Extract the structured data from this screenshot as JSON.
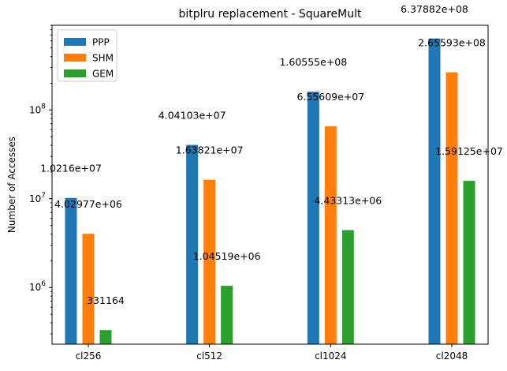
{
  "chart_data": {
    "type": "bar",
    "title": "bitplru replacement - SquareMult",
    "xlabel": "",
    "ylabel": "Number of Accesses",
    "yscale": "log",
    "ylim": [
      230000,
      900000000
    ],
    "yticks": [
      {
        "value": 1000000,
        "base": "10",
        "exp": "6"
      },
      {
        "value": 10000000,
        "base": "10",
        "exp": "7"
      },
      {
        "value": 100000000,
        "base": "10",
        "exp": "8"
      }
    ],
    "categories": [
      "cl256",
      "cl512",
      "cl1024",
      "cl2048"
    ],
    "series": [
      {
        "name": "PPP",
        "color": "#1f77b4",
        "values": [
          10216000,
          40410300,
          160555000,
          637882000
        ],
        "labels": [
          "1.0216e+07",
          "4.04103e+07",
          "1.60555e+08",
          "6.37882e+08"
        ]
      },
      {
        "name": "SHM",
        "color": "#ff7f0e",
        "values": [
          4029770,
          16382100,
          65560900,
          265593000
        ],
        "labels": [
          "4.02977e+06",
          "1.63821e+07",
          "6.55609e+07",
          "2.65593e+08"
        ]
      },
      {
        "name": "GEM",
        "color": "#2ca02c",
        "values": [
          331164,
          1045190,
          4433130,
          15912500
        ],
        "labels": [
          "331164",
          "1.04519e+06",
          "4.43313e+06",
          "1.59125e+07"
        ]
      }
    ],
    "legend": "top-left",
    "grid": false
  }
}
